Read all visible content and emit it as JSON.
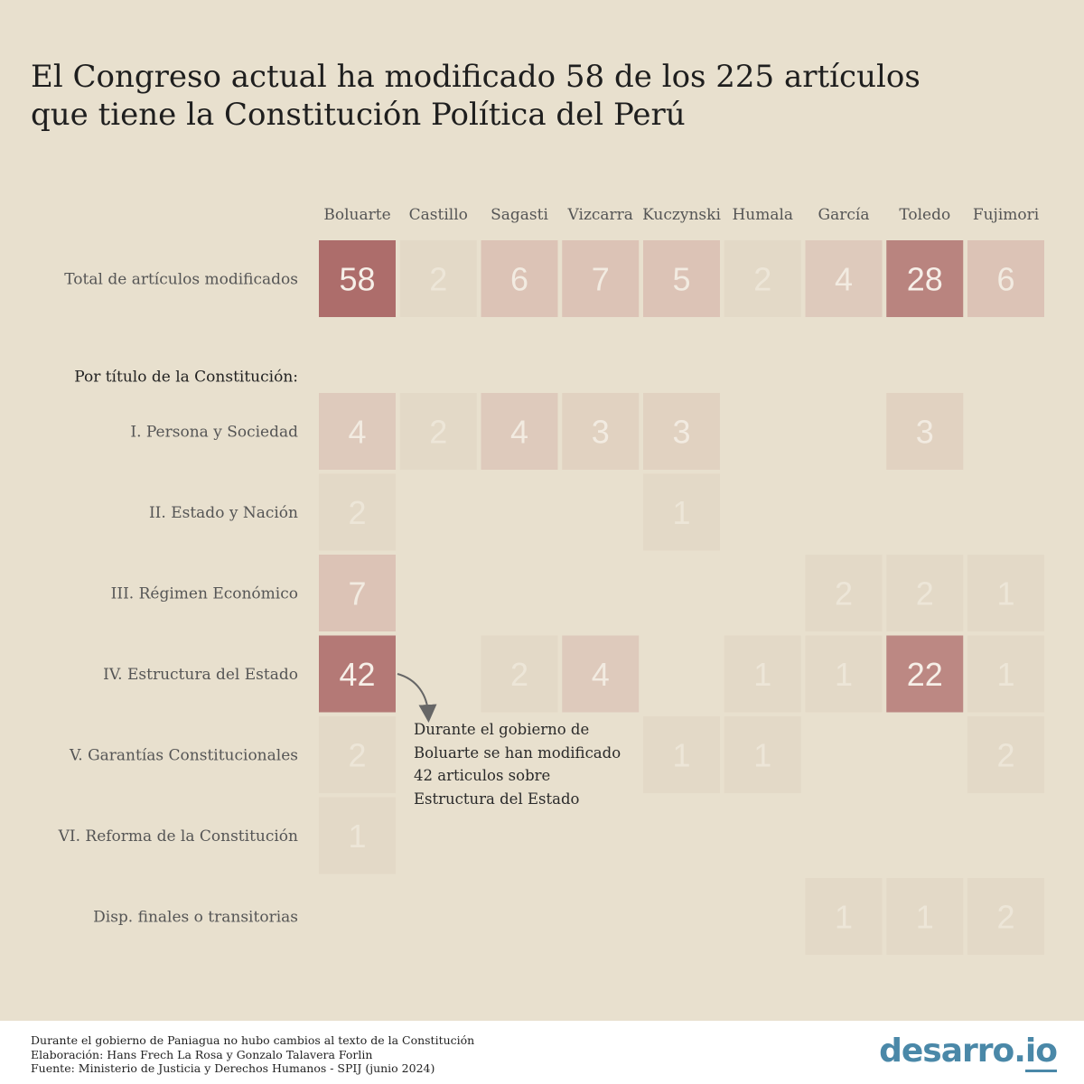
{
  "title": {
    "line1": "El Congreso actual ha modificado 58 de los 225 artículos",
    "line2": "que tiene la Constitución Política del Perú"
  },
  "chart_data": {
    "type": "heatmap",
    "title": "El Congreso actual ha modificado 58 de los 225 artículos que tiene la Constitución Política del Perú",
    "columns": [
      "Boluarte",
      "Castillo",
      "Sagasti",
      "Vizcarra",
      "Kuczynski",
      "Humala",
      "García",
      "Toledo",
      "Fujimori"
    ],
    "rows": [
      {
        "label": "Total de artículos modificados",
        "values": [
          58,
          2,
          6,
          7,
          5,
          2,
          4,
          28,
          6
        ]
      },
      {
        "label": "Por título de la Constitución:",
        "header": true,
        "values": [
          null,
          null,
          null,
          null,
          null,
          null,
          null,
          null,
          null
        ]
      },
      {
        "label": "I. Persona y Sociedad",
        "values": [
          4,
          2,
          4,
          3,
          3,
          null,
          null,
          3,
          null
        ]
      },
      {
        "label": "II. Estado y Nación",
        "values": [
          2,
          null,
          null,
          null,
          1,
          null,
          null,
          null,
          null
        ]
      },
      {
        "label": "III. Régimen Económico",
        "values": [
          7,
          null,
          null,
          null,
          null,
          null,
          2,
          2,
          1
        ]
      },
      {
        "label": "IV. Estructura del Estado",
        "values": [
          42,
          null,
          2,
          4,
          null,
          1,
          1,
          22,
          1
        ]
      },
      {
        "label": "V. Garantías Constitucionales",
        "values": [
          2,
          null,
          null,
          null,
          1,
          1,
          null,
          null,
          2
        ]
      },
      {
        "label": "VI. Reforma de la Constitución",
        "values": [
          1,
          null,
          null,
          null,
          null,
          null,
          null,
          null,
          null
        ]
      },
      {
        "label": "Disp. finales o transitorias",
        "values": [
          null,
          null,
          null,
          null,
          null,
          null,
          1,
          1,
          2
        ]
      }
    ],
    "color_scale": {
      "low": "#e3d9c7",
      "mid": "#dcc3b6",
      "high": "#ad6d6b"
    }
  },
  "annotation": {
    "line1": "Durante el gobierno de",
    "line2": "Boluarte se han modificado",
    "line3": "42 articulos sobre",
    "line4": "Estructura del Estado"
  },
  "footer": {
    "note1": "Durante el gobierno de Paniagua no hubo cambios al texto de la Constitución",
    "note2": "Elaboración: Hans Frech La Rosa y Gonzalo Talavera Forlin",
    "note3": "Fuente: Ministerio de Justicia y Derechos Humanos - SPIJ (junio 2024)"
  },
  "logo": {
    "main": "desarro.",
    "suffix": "io"
  }
}
